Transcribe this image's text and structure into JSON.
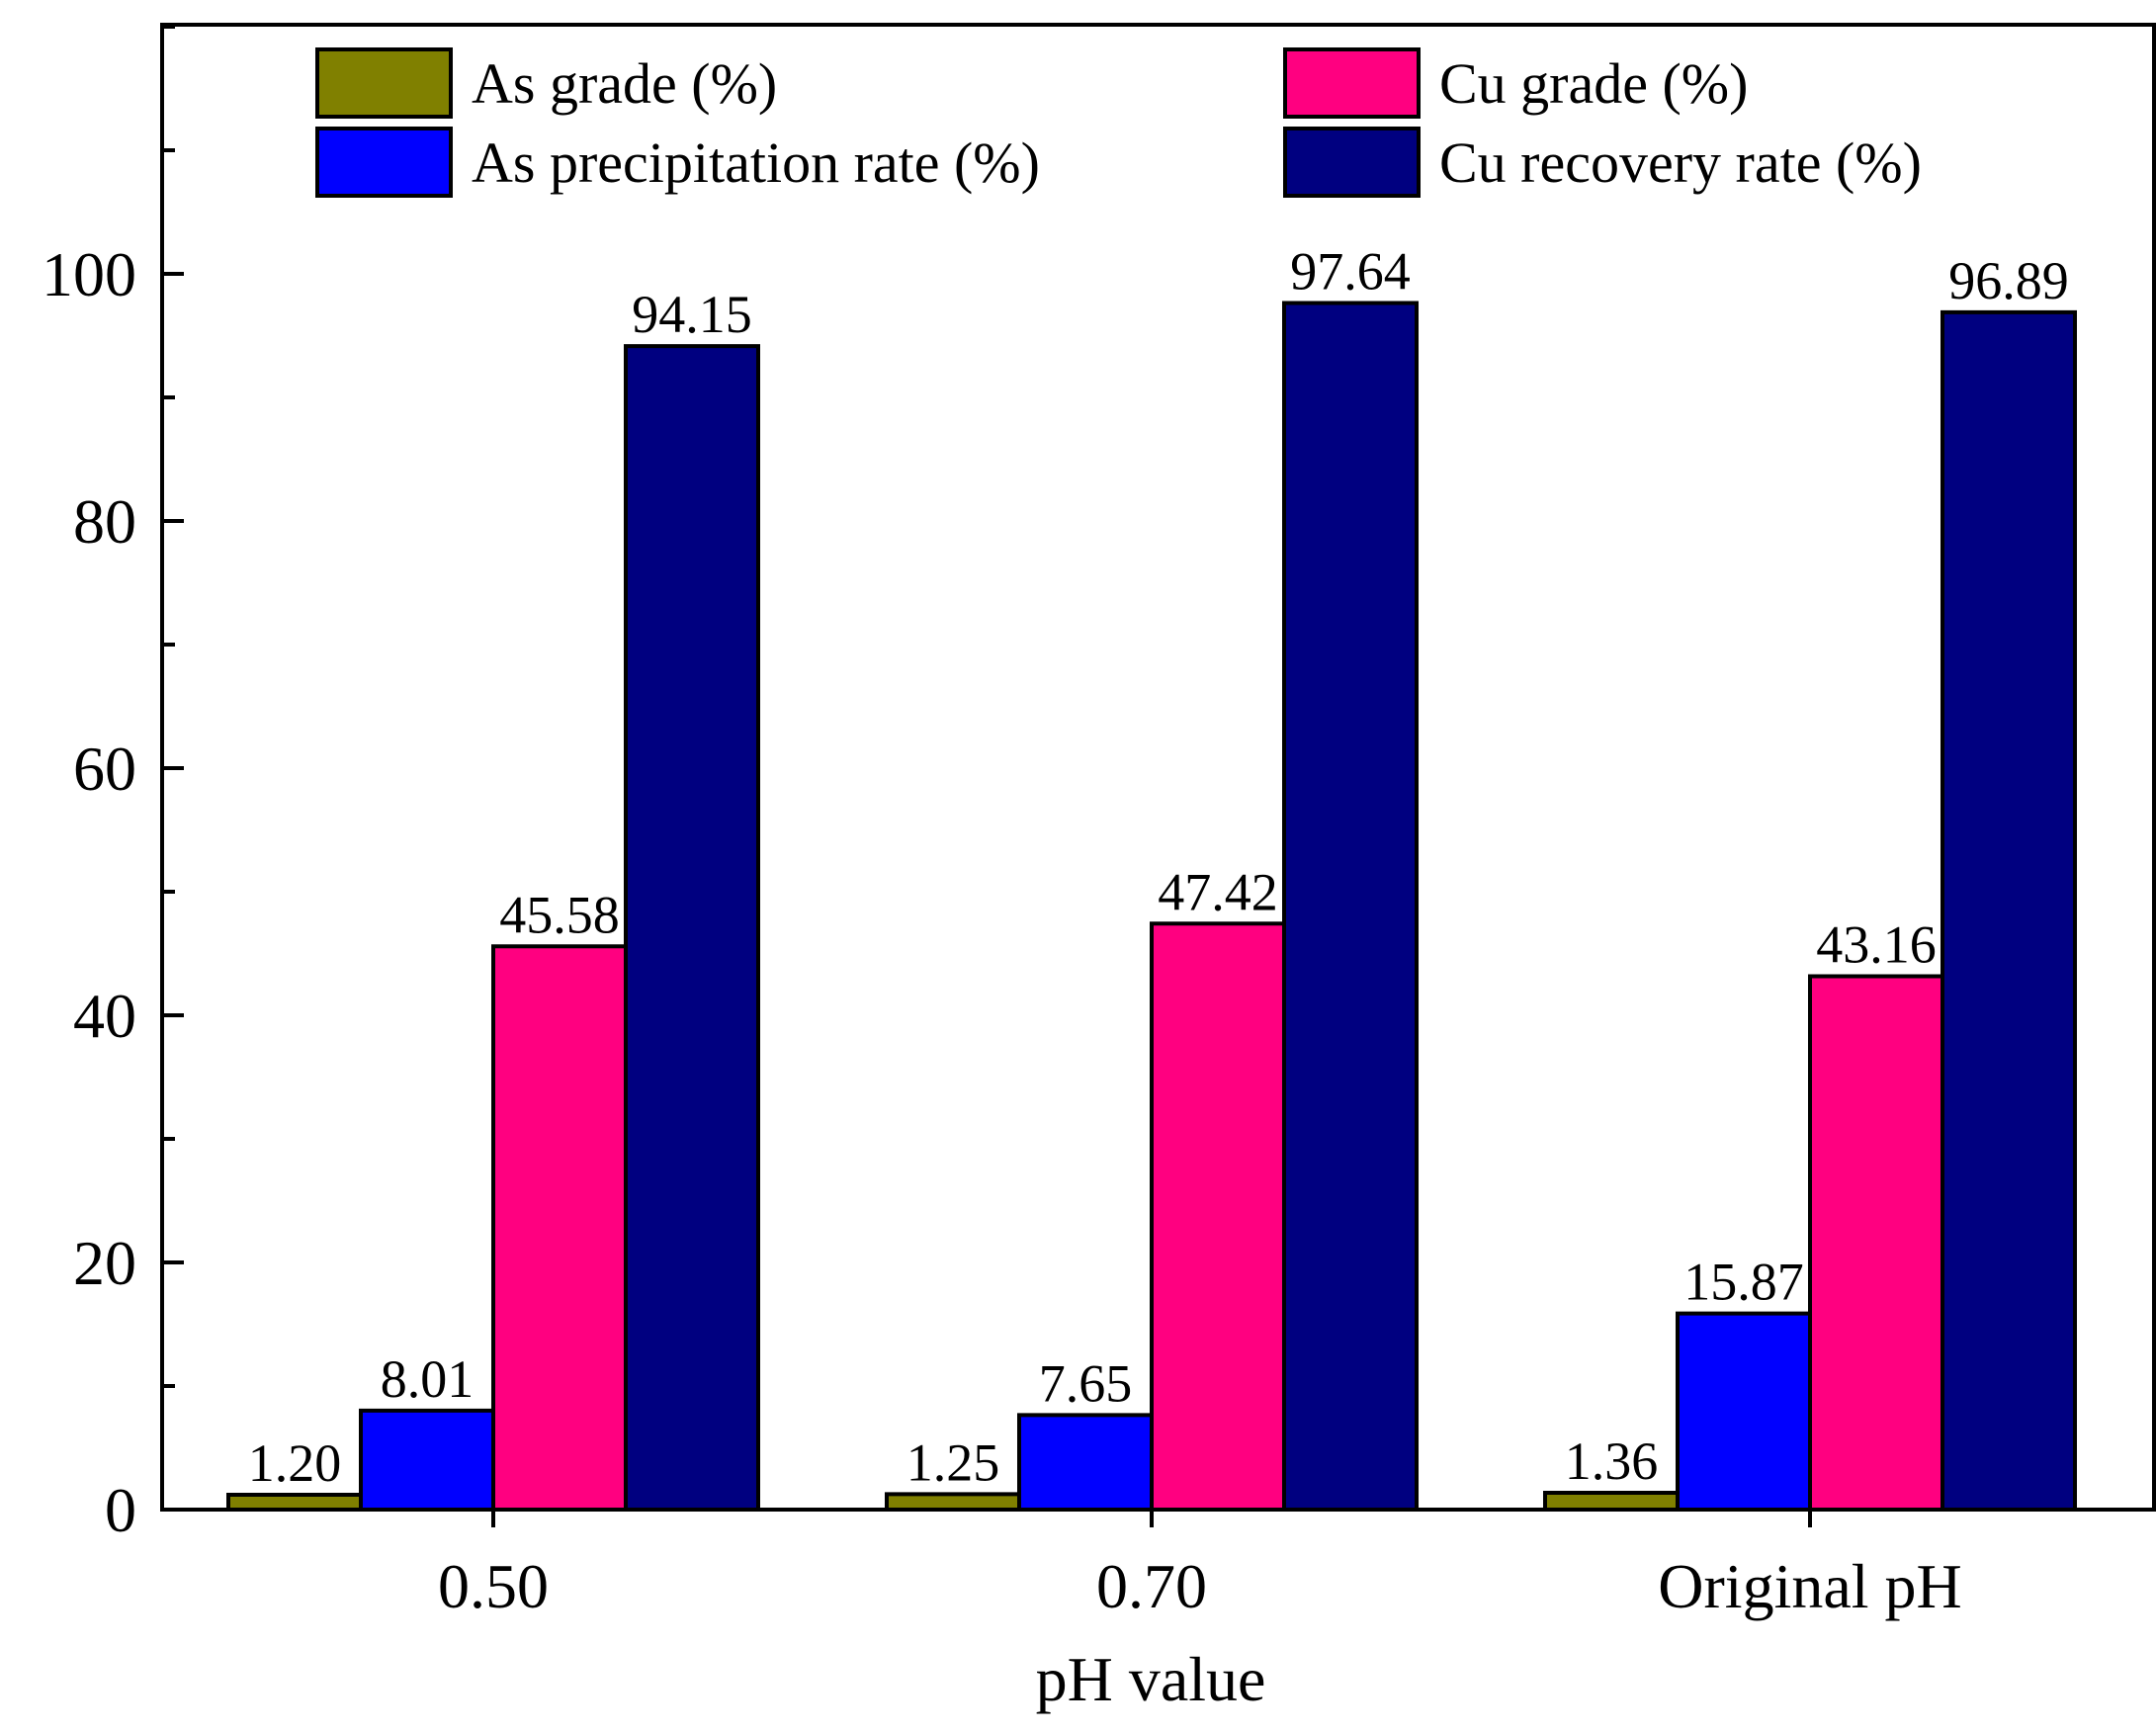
{
  "chart_data": {
    "type": "bar",
    "title": "",
    "xlabel": "pH value",
    "ylabel": "",
    "ylim": [
      0,
      120
    ],
    "yticks": [
      0,
      20,
      40,
      60,
      80,
      100
    ],
    "ytick_labels": [
      "0",
      "20",
      "40",
      "60",
      "80",
      "100"
    ],
    "minor_ytick_step": 10,
    "grid": false,
    "legend_position": "top",
    "categories": [
      "0.50",
      "0.70",
      "Original pH"
    ],
    "series": [
      {
        "name": "As grade (%)",
        "color": "#808000",
        "values": [
          1.2,
          1.25,
          1.36
        ],
        "labels": [
          "1.20",
          "1.25",
          "1.36"
        ]
      },
      {
        "name": "As precipitation rate (%)",
        "color": "#0000FF",
        "values": [
          8.01,
          7.65,
          15.87
        ],
        "labels": [
          "8.01",
          "7.65",
          "15.87"
        ]
      },
      {
        "name": "Cu grade (%)",
        "color": "#FF0080",
        "values": [
          45.58,
          47.42,
          43.16
        ],
        "labels": [
          "45.58",
          "47.42",
          "43.16"
        ]
      },
      {
        "name": "Cu recovery rate (%)",
        "color": "#000080",
        "values": [
          94.15,
          97.64,
          96.89
        ],
        "labels": [
          "94.15",
          "97.64",
          "96.89"
        ]
      }
    ]
  }
}
